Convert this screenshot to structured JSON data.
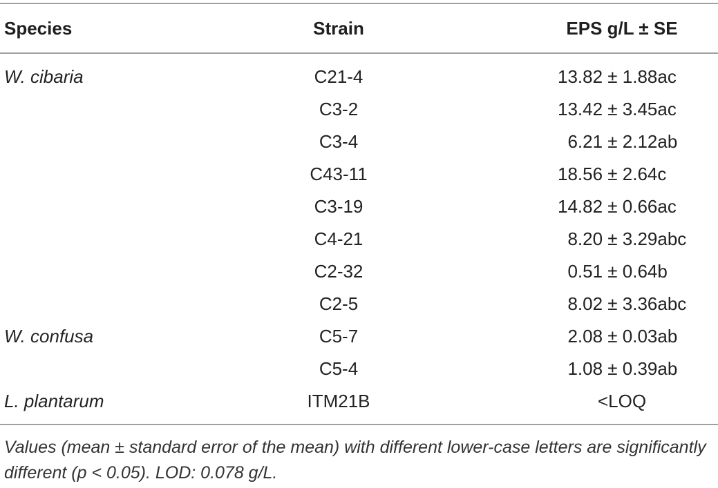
{
  "header": {
    "species": "Species",
    "strain": "Strain",
    "eps": "EPS g/L ± SE"
  },
  "rows": [
    {
      "species": "W. cibaria",
      "strain": "C21-4",
      "eps": "13.82 ± 1.88ac"
    },
    {
      "species": "",
      "strain": "C3-2",
      "eps": "13.42 ± 3.45ac"
    },
    {
      "species": "",
      "strain": "C3-4",
      "eps": "  6.21 ± 2.12ab"
    },
    {
      "species": "",
      "strain": "C43-11",
      "eps": "18.56 ± 2.64c"
    },
    {
      "species": "",
      "strain": "C3-19",
      "eps": "14.82 ± 0.66ac"
    },
    {
      "species": "",
      "strain": "C4-21",
      "eps": "  8.20 ± 3.29abc"
    },
    {
      "species": "",
      "strain": "C2-32",
      "eps": "  0.51 ± 0.64b"
    },
    {
      "species": "",
      "strain": "C2-5",
      "eps": "  8.02 ± 3.36abc"
    },
    {
      "species": "W. confusa",
      "strain": "C5-7",
      "eps": "  2.08 ± 0.03ab"
    },
    {
      "species": "",
      "strain": "C5-4",
      "eps": "  1.08 ± 0.39ab"
    },
    {
      "species": "L. plantarum",
      "strain": "ITM21B",
      "eps": "<LOQ"
    }
  ],
  "footnote": "Values (mean ± standard error of the mean) with different lower-case letters are significantly different (p < 0.05). LOD: 0.078 g/L."
}
